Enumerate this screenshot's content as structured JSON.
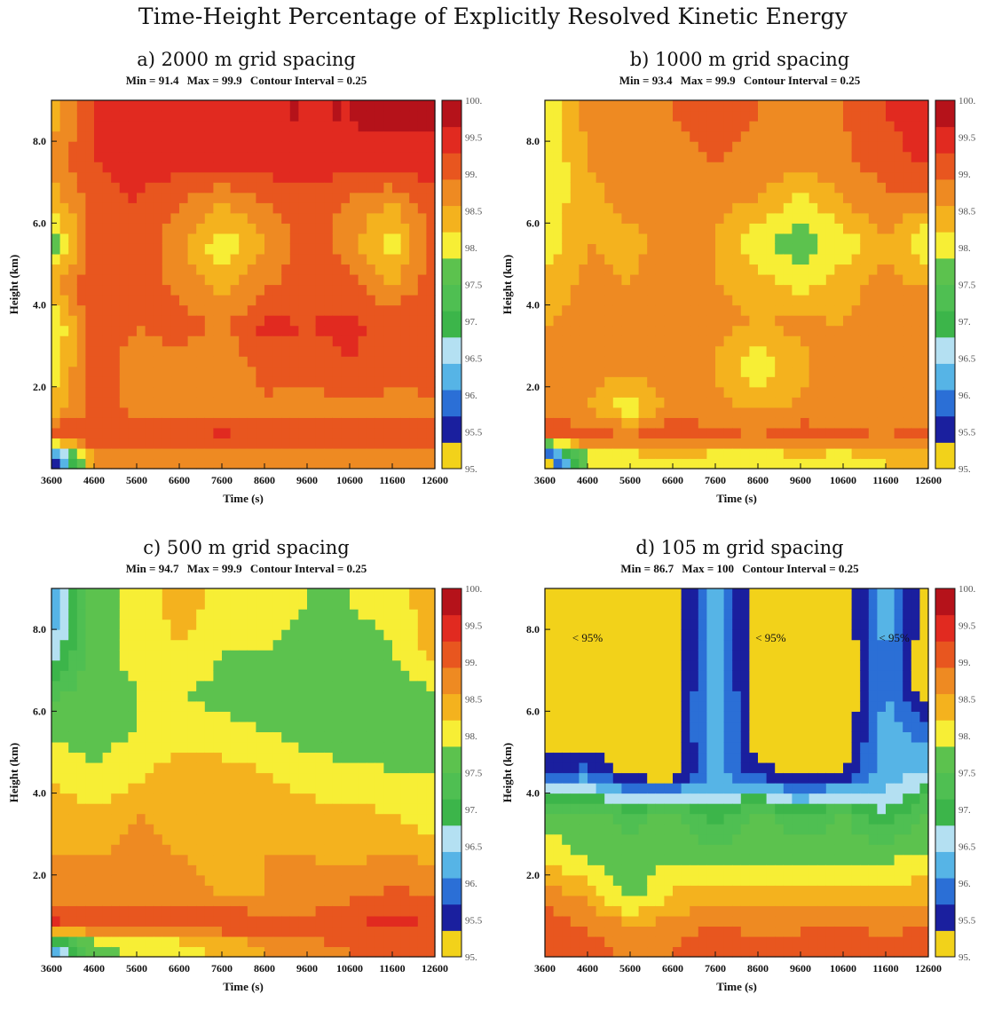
{
  "title": "Time-Height Percentage of Explicitly Resolved Kinetic Energy",
  "colorbar": {
    "levels": [
      "95.",
      "95.5",
      "96.",
      "96.5",
      "97.",
      "97.5",
      "98.",
      "98.5",
      "99.",
      "99.5",
      "100."
    ],
    "colors": [
      "#f2d21a",
      "#1a1f9e",
      "#2b6fd6",
      "#56b4e6",
      "#b4e0f2",
      "#3cb54a",
      "#4fbf52",
      "#5cc24e",
      "#f7ee35",
      "#f4b21e",
      "#ee8a22",
      "#e8561f",
      "#e12a20",
      "#b5121a"
    ]
  },
  "chart_data": [
    {
      "type": "heatmap",
      "title": "a) 2000 m grid spacing",
      "min_label": "Min = 91.4",
      "max_label": "Max = 99.9",
      "interval_label": "Contour Interval = 0.25",
      "xlabel": "Time (s)",
      "ylabel": "Height (km)",
      "x_ticks": [
        "3600",
        "4600",
        "5600",
        "6600",
        "7600",
        "8600",
        "9600",
        "10600",
        "11600",
        "12600"
      ],
      "y_ticks": [
        "2.0",
        "4.0",
        "6.0",
        "8.0"
      ],
      "xlim": [
        3600,
        12600
      ],
      "ylim": [
        0,
        9
      ],
      "annotations": [],
      "x": [
        3600,
        4600,
        5600,
        6600,
        7600,
        8600,
        9600,
        10600,
        11600,
        12600
      ],
      "y": [
        0.3,
        0.8,
        1.5,
        2.5,
        3.5,
        4.5,
        5.5,
        6.5,
        7.5,
        8.5
      ],
      "z": [
        [
          95.0,
          98.6,
          98.7,
          98.8,
          98.7,
          98.8,
          98.7,
          98.6,
          98.7,
          98.8
        ],
        [
          99.5,
          99.4,
          99.3,
          99.4,
          99.5,
          99.4,
          99.4,
          99.3,
          99.4,
          99.4
        ],
        [
          98.3,
          99.1,
          98.9,
          98.9,
          98.7,
          98.9,
          98.8,
          98.9,
          98.9,
          98.9
        ],
        [
          97.9,
          99.3,
          98.7,
          98.8,
          98.6,
          99.2,
          99.2,
          99.4,
          99.1,
          99.2
        ],
        [
          97.6,
          99.4,
          99.0,
          99.2,
          98.9,
          99.5,
          99.4,
          99.5,
          99.3,
          99.4
        ],
        [
          98.6,
          99.3,
          99.2,
          98.9,
          98.4,
          98.9,
          99.3,
          99.1,
          98.6,
          99.3
        ],
        [
          97.5,
          99.2,
          99.4,
          98.7,
          97.9,
          98.6,
          99.2,
          98.8,
          97.9,
          99.2
        ],
        [
          98.3,
          99.2,
          99.4,
          99.0,
          98.6,
          99.0,
          99.3,
          98.9,
          98.6,
          99.3
        ],
        [
          98.7,
          99.4,
          99.6,
          99.6,
          99.5,
          99.6,
          99.6,
          99.6,
          99.6,
          99.6
        ],
        [
          98.4,
          99.5,
          99.6,
          99.7,
          99.7,
          99.8,
          99.8,
          99.8,
          99.9,
          99.9
        ]
      ]
    },
    {
      "type": "heatmap",
      "title": "b) 1000 m grid spacing",
      "min_label": "Min = 93.4",
      "max_label": "Max = 99.9",
      "interval_label": "Contour Interval = 0.25",
      "xlabel": "Time (s)",
      "ylabel": "Height (km)",
      "x_ticks": [
        "3600",
        "4600",
        "5600",
        "6600",
        "7600",
        "8600",
        "9600",
        "10600",
        "11600",
        "12600"
      ],
      "y_ticks": [
        "2.0",
        "4.0",
        "6.0",
        "8.0"
      ],
      "xlim": [
        3600,
        12600
      ],
      "ylim": [
        0,
        9
      ],
      "annotations": [],
      "x": [
        3600,
        4600,
        5600,
        6600,
        7600,
        8600,
        9600,
        10600,
        11600,
        12600
      ],
      "y": [
        0.3,
        0.8,
        1.5,
        2.5,
        3.5,
        4.5,
        5.5,
        6.5,
        7.5,
        8.5
      ],
      "z": [
        [
          94.5,
          97.8,
          98.0,
          98.2,
          98.0,
          97.9,
          98.1,
          98.0,
          98.2,
          98.3
        ],
        [
          99.3,
          99.2,
          99.0,
          99.4,
          99.1,
          99.0,
          99.3,
          99.1,
          99.0,
          99.2
        ],
        [
          98.9,
          98.6,
          97.9,
          98.8,
          98.7,
          98.5,
          98.7,
          98.6,
          98.8,
          98.7
        ],
        [
          98.9,
          98.8,
          98.8,
          98.9,
          98.6,
          97.8,
          98.5,
          98.9,
          98.9,
          98.8
        ],
        [
          98.6,
          98.7,
          99.0,
          98.8,
          98.7,
          98.6,
          98.7,
          98.6,
          98.8,
          98.7
        ],
        [
          98.4,
          98.7,
          98.6,
          98.9,
          98.6,
          98.5,
          98.0,
          98.5,
          98.7,
          98.6
        ],
        [
          97.9,
          98.6,
          98.5,
          98.7,
          98.6,
          97.8,
          97.6,
          97.9,
          98.6,
          97.8
        ],
        [
          97.9,
          98.5,
          98.7,
          98.6,
          98.7,
          98.6,
          98.0,
          98.6,
          98.9,
          98.7
        ],
        [
          97.8,
          98.6,
          98.8,
          98.9,
          99.0,
          98.9,
          98.8,
          98.9,
          99.2,
          99.5
        ],
        [
          97.9,
          98.7,
          98.8,
          99.0,
          99.1,
          99.0,
          98.9,
          99.0,
          99.4,
          99.6
        ]
      ]
    },
    {
      "type": "heatmap",
      "title": "c) 500 m grid spacing",
      "min_label": "Min = 94.7",
      "max_label": "Max = 99.9",
      "interval_label": "Contour Interval = 0.25",
      "xlabel": "Time (s)",
      "ylabel": "Height (km)",
      "x_ticks": [
        "3600",
        "4600",
        "5600",
        "6600",
        "7600",
        "8600",
        "9600",
        "10600",
        "11600",
        "12600"
      ],
      "y_ticks": [
        "2.0",
        "4.0",
        "6.0",
        "8.0"
      ],
      "xlim": [
        3600,
        12600
      ],
      "ylim": [
        0,
        9
      ],
      "annotations": [],
      "x": [
        3600,
        4600,
        5600,
        6600,
        7600,
        8600,
        9600,
        10600,
        11600,
        12600
      ],
      "y": [
        0.3,
        0.8,
        1.5,
        2.5,
        3.5,
        4.5,
        5.5,
        6.5,
        7.5,
        8.5
      ],
      "z": [
        [
          96.0,
          97.6,
          97.9,
          98.0,
          98.3,
          98.6,
          98.9,
          99.0,
          99.2,
          99.3
        ],
        [
          99.5,
          99.3,
          99.2,
          99.3,
          99.4,
          99.3,
          99.2,
          99.4,
          99.5,
          99.4
        ],
        [
          98.9,
          98.7,
          98.8,
          98.7,
          98.6,
          98.6,
          98.7,
          98.9,
          99.1,
          99.0
        ],
        [
          98.6,
          98.6,
          98.7,
          98.6,
          98.5,
          98.6,
          98.6,
          98.5,
          98.6,
          98.5
        ],
        [
          98.5,
          98.3,
          98.6,
          98.5,
          98.6,
          98.5,
          98.4,
          98.3,
          98.2,
          97.9
        ],
        [
          98.1,
          97.8,
          98.0,
          98.5,
          98.4,
          98.2,
          97.9,
          97.9,
          97.8,
          97.8
        ],
        [
          97.7,
          97.7,
          97.8,
          97.9,
          97.9,
          97.8,
          97.7,
          97.6,
          97.6,
          97.7
        ],
        [
          97.3,
          97.6,
          97.8,
          97.8,
          97.7,
          97.6,
          97.6,
          97.5,
          97.6,
          97.8
        ],
        [
          96.3,
          97.7,
          97.9,
          98.2,
          97.8,
          97.8,
          97.7,
          97.6,
          97.8,
          98.4
        ],
        [
          95.8,
          97.6,
          97.9,
          98.4,
          98.0,
          97.9,
          97.8,
          97.8,
          97.9,
          98.5
        ]
      ]
    },
    {
      "type": "heatmap",
      "title": "d) 105 m grid spacing",
      "min_label": "Min = 86.7",
      "max_label": "Max = 100",
      "interval_label": "Contour Interval = 0.25",
      "xlabel": "Time (s)",
      "ylabel": "Height (km)",
      "x_ticks": [
        "3600",
        "4600",
        "5600",
        "6600",
        "7600",
        "8600",
        "9600",
        "10600",
        "11600",
        "12600"
      ],
      "y_ticks": [
        "2.0",
        "4.0",
        "6.0",
        "8.0"
      ],
      "xlim": [
        3600,
        12600
      ],
      "ylim": [
        0,
        9
      ],
      "annotations": [
        {
          "text": "< 95%",
          "x": 4600,
          "y": 7.7
        },
        {
          "text": "< 95%",
          "x": 8900,
          "y": 7.7
        },
        {
          "text": "< 95%",
          "x": 11800,
          "y": 7.7
        }
      ],
      "x": [
        3600,
        4600,
        5600,
        6600,
        7600,
        8600,
        9600,
        10600,
        11600,
        12600
      ],
      "y": [
        0.3,
        0.8,
        1.5,
        2.5,
        3.5,
        4.5,
        5.5,
        6.5,
        7.5,
        8.5
      ],
      "z": [
        [
          99.4,
          99.1,
          98.9,
          99.0,
          99.3,
          99.1,
          99.2,
          99.3,
          99.1,
          99.3
        ],
        [
          99.2,
          98.9,
          98.6,
          98.7,
          99.0,
          98.8,
          98.9,
          99.0,
          98.8,
          99.0
        ],
        [
          98.9,
          98.5,
          97.6,
          98.3,
          98.5,
          98.4,
          98.5,
          98.4,
          98.4,
          98.5
        ],
        [
          98.0,
          97.7,
          97.5,
          97.7,
          97.6,
          97.6,
          97.7,
          97.6,
          97.7,
          97.8
        ],
        [
          97.7,
          97.6,
          97.2,
          97.6,
          96.7,
          97.6,
          96.9,
          97.5,
          96.6,
          97.6
        ],
        [
          95.3,
          95.6,
          94.7,
          94.6,
          95.9,
          95.2,
          94.8,
          95.0,
          96.0,
          96.2
        ],
        [
          94.5,
          94.6,
          94.5,
          94.6,
          96.3,
          94.6,
          94.5,
          94.6,
          96.1,
          95.6
        ],
        [
          94.5,
          94.6,
          94.5,
          94.6,
          96.2,
          94.6,
          94.5,
          94.6,
          95.8,
          94.6
        ],
        [
          94.4,
          94.5,
          94.5,
          94.6,
          96.1,
          94.6,
          94.5,
          94.6,
          95.9,
          94.6
        ],
        [
          94.4,
          94.5,
          94.5,
          94.6,
          96.0,
          94.6,
          94.5,
          94.6,
          96.0,
          94.6
        ]
      ]
    }
  ]
}
